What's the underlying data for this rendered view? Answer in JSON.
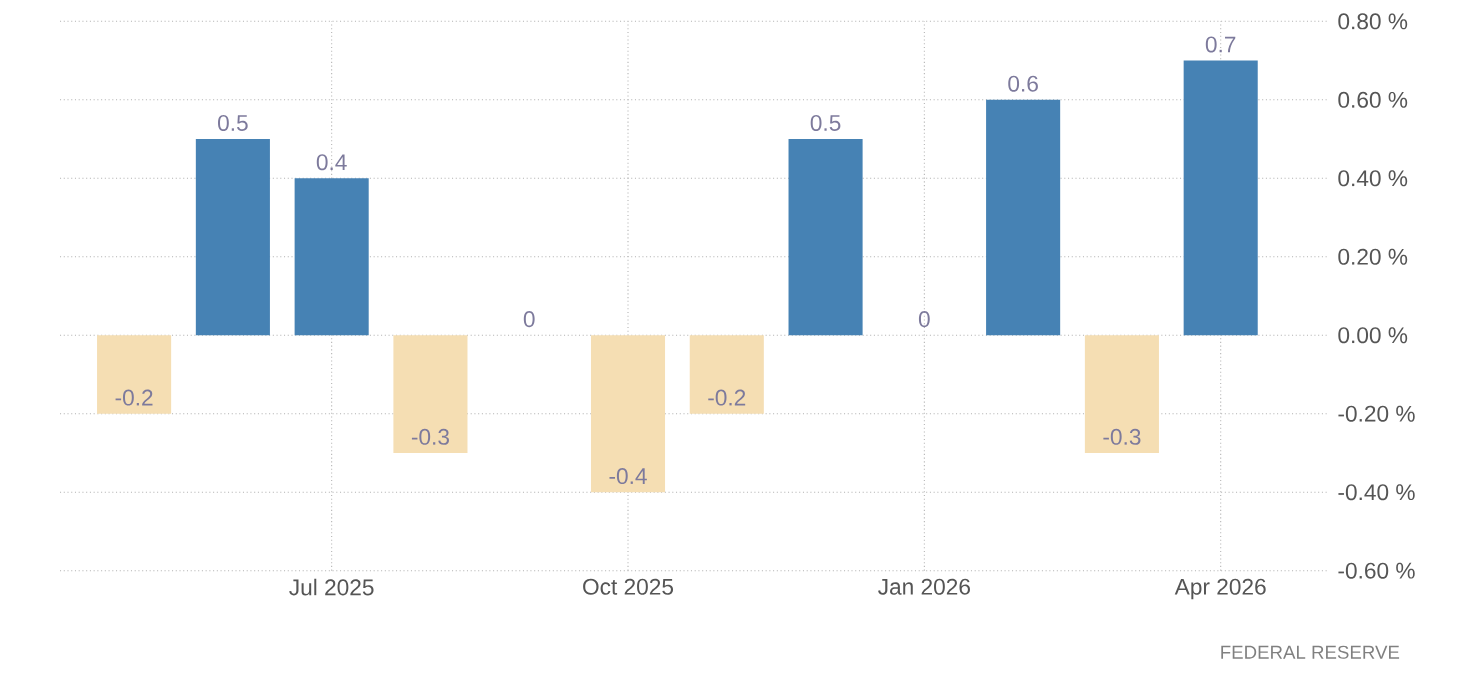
{
  "chart_data": {
    "type": "bar",
    "categories": [
      null,
      null,
      "Jul 2025",
      null,
      null,
      "Oct 2025",
      null,
      null,
      "Jan 2026",
      null,
      null,
      "Apr 2026"
    ],
    "values": [
      -0.2,
      0.5,
      0.4,
      -0.3,
      0,
      -0.4,
      -0.2,
      0.5,
      0,
      0.6,
      -0.3,
      0.7
    ],
    "colors": [
      "#f5deb3",
      "#4682b4",
      "#4682b4",
      "#f5deb3",
      "#4682b4",
      "#f5deb3",
      "#f5deb3",
      "#4682b4",
      "#4682b4",
      "#4682b4",
      "#f5deb3",
      "#4682b4"
    ],
    "ylim": [
      -0.6,
      0.8
    ],
    "yticks": [
      {
        "value": -0.6,
        "label": "-0.60 %"
      },
      {
        "value": -0.4,
        "label": "-0.40 %"
      },
      {
        "value": -0.2,
        "label": "-0.20 %"
      },
      {
        "value": 0,
        "label": "0.00 %"
      },
      {
        "value": 0.2,
        "label": "0.20 %"
      },
      {
        "value": 0.4,
        "label": "0.40 %"
      },
      {
        "value": 0.6,
        "label": "0.60 %"
      },
      {
        "value": 0.8,
        "label": "0.80 %"
      }
    ],
    "grid": true,
    "data_labels": true,
    "annotations": [
      "FEDERAL RESERVE"
    ]
  }
}
